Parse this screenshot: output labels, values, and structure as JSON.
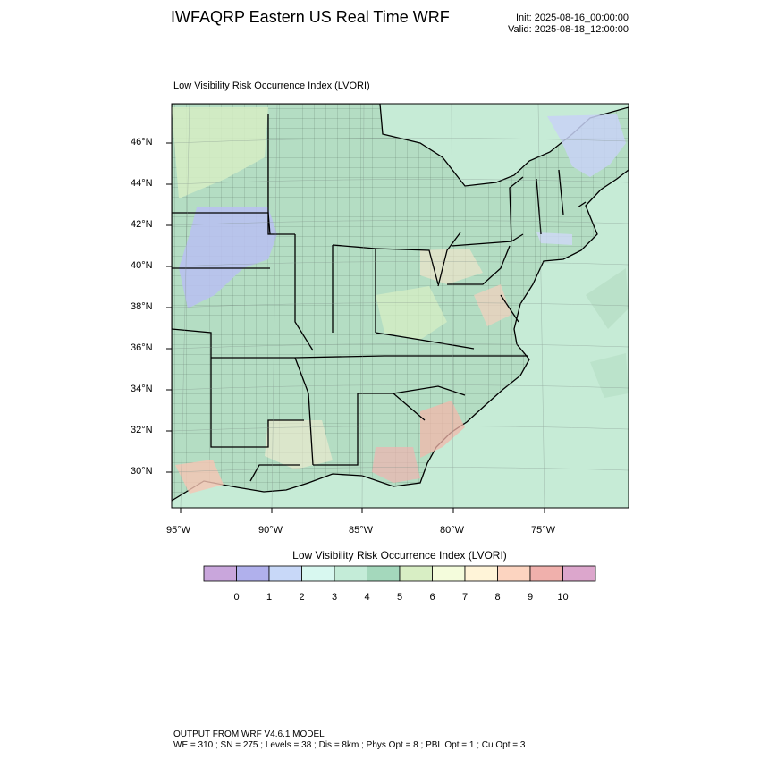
{
  "header": {
    "title": "IWFAQRP Eastern US Real Time WRF",
    "init": "Init: 2025-08-16_00:00:00",
    "valid": "Valid: 2025-08-18_12:00:00"
  },
  "plot": {
    "title": "Low Visibility Risk Occurrence Index   (LVORI)",
    "lat_labels": [
      "46°N",
      "44°N",
      "42°N",
      "40°N",
      "38°N",
      "36°N",
      "34°N",
      "32°N",
      "30°N"
    ],
    "lon_labels": [
      "95°W",
      "90°W",
      "85°W",
      "80°W",
      "75°W"
    ]
  },
  "colorbar": {
    "title": "Low Visibility Risk Occurrence Index  (LVORI)",
    "labels": [
      "0",
      "1",
      "2",
      "3",
      "4",
      "5",
      "6",
      "7",
      "8",
      "9",
      "10"
    ],
    "colors": [
      "#c9a6dc",
      "#b0b0ec",
      "#c8d8f8",
      "#d8f8f0",
      "#c4ecd8",
      "#a4d8bc",
      "#d8eec4",
      "#f4fcdc",
      "#fff4d8",
      "#fcd4c0",
      "#f0b0ac",
      "#dca6cc"
    ]
  },
  "footer": {
    "line1": "OUTPUT FROM WRF V4.6.1 MODEL",
    "line2": "WE = 310 ; SN = 275 ; Levels = 38 ; Dis = 8km ; Phys Opt = 8 ; PBL Opt = 1 ; Cu Opt = 3"
  }
}
